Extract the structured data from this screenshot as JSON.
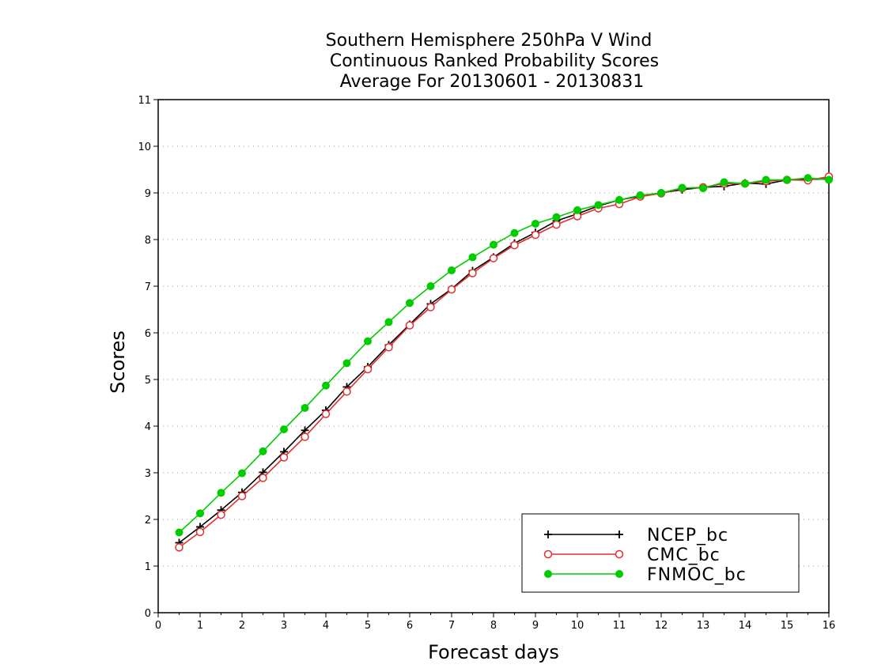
{
  "chart_data": {
    "type": "line",
    "title": [
      "Southern Hemisphere 250hPa V Wind",
      "Continuous Ranked Probability Scores",
      "Average For 20130601 - 20130831"
    ],
    "xlabel": "Forecast days",
    "ylabel": "Scores",
    "xlim": [
      0,
      16
    ],
    "ylim": [
      0,
      11
    ],
    "xticks": [
      0,
      1,
      2,
      3,
      4,
      5,
      6,
      7,
      8,
      9,
      10,
      11,
      12,
      13,
      14,
      15,
      16
    ],
    "yticks": [
      0,
      1,
      2,
      3,
      4,
      5,
      6,
      7,
      8,
      9,
      10,
      11
    ],
    "grid": true,
    "legend_position": "bottom-right",
    "x": [
      0.5,
      1,
      1.5,
      2,
      2.5,
      3,
      3.5,
      4,
      4.5,
      5,
      5.5,
      6,
      6.5,
      7,
      7.5,
      8,
      8.5,
      9,
      9.5,
      10,
      10.5,
      11,
      11.5,
      12,
      12.5,
      13,
      13.5,
      14,
      14.5,
      15,
      15.5,
      16
    ],
    "series": [
      {
        "name": "NCEP_bc",
        "color": "#000000",
        "marker": "plus",
        "values": [
          1.5,
          1.84,
          2.2,
          2.58,
          3.01,
          3.45,
          3.91,
          4.34,
          4.84,
          5.27,
          5.74,
          6.18,
          6.62,
          6.94,
          7.33,
          7.62,
          7.92,
          8.15,
          8.4,
          8.55,
          8.72,
          8.85,
          8.93,
          9.0,
          9.07,
          9.12,
          9.14,
          9.21,
          9.19,
          9.28,
          9.29,
          9.3
        ]
      },
      {
        "name": "CMC_bc",
        "color": "#e03030",
        "marker": "open-circle",
        "values": [
          1.4,
          1.73,
          2.1,
          2.5,
          2.89,
          3.33,
          3.77,
          4.26,
          4.74,
          5.22,
          5.69,
          6.16,
          6.55,
          6.93,
          7.28,
          7.6,
          7.88,
          8.1,
          8.32,
          8.5,
          8.67,
          8.76,
          8.92,
          8.99,
          9.1,
          9.12,
          9.2,
          9.2,
          9.25,
          9.28,
          9.27,
          9.35
        ]
      },
      {
        "name": "FNMOC_bc",
        "color": "#00cc00",
        "marker": "filled-circle",
        "values": [
          1.72,
          2.13,
          2.57,
          2.99,
          3.46,
          3.93,
          4.39,
          4.87,
          5.35,
          5.82,
          6.23,
          6.64,
          7.0,
          7.34,
          7.62,
          7.89,
          8.14,
          8.34,
          8.48,
          8.63,
          8.74,
          8.85,
          8.95,
          9.0,
          9.11,
          9.1,
          9.23,
          9.2,
          9.28,
          9.28,
          9.32,
          9.28
        ]
      }
    ]
  }
}
